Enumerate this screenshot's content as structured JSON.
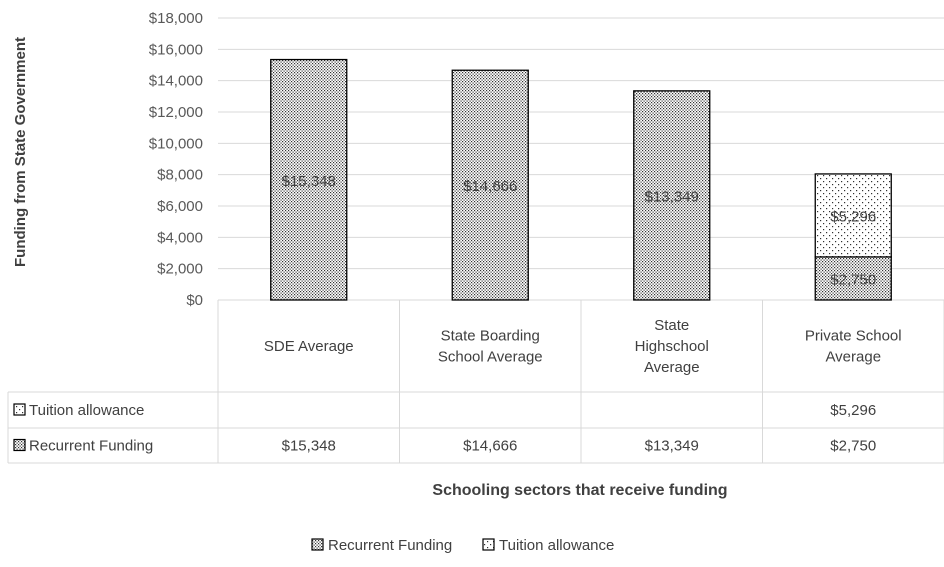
{
  "chart_data": {
    "type": "bar",
    "stacked": true,
    "categories": [
      [
        "SDE Average"
      ],
      [
        "State Boarding",
        "School Average"
      ],
      [
        "State",
        "Highschool",
        "Average"
      ],
      [
        "Private School",
        "Average"
      ]
    ],
    "series": [
      {
        "name": "Recurrent Funding",
        "values": [
          15348,
          14666,
          13349,
          2750
        ],
        "labels": [
          "$15,348",
          "$14,666",
          "$13,349",
          "$2,750"
        ],
        "pattern": "dense-dots",
        "color": "#000000"
      },
      {
        "name": "Tuition allowance",
        "values": [
          null,
          null,
          null,
          5296
        ],
        "labels": [
          "",
          "",
          "",
          "$5,296"
        ],
        "pattern": "sparse-dots",
        "color": "#000000"
      }
    ],
    "ylabel": "Funding from State Government",
    "xlabel": "Schooling sectors that receive funding",
    "ylim": [
      0,
      18000
    ],
    "yticks": [
      0,
      2000,
      4000,
      6000,
      8000,
      10000,
      12000,
      14000,
      16000,
      18000
    ],
    "ytick_labels": [
      "$0",
      "$2,000",
      "$4,000",
      "$6,000",
      "$8,000",
      "$10,000",
      "$12,000",
      "$14,000",
      "$16,000",
      "$18,000"
    ],
    "grid": true,
    "legend_position": "bottom",
    "data_table": {
      "rows": [
        {
          "series": "Tuition allowance",
          "cells": [
            "",
            "",
            "",
            "$5,296"
          ]
        },
        {
          "series": "Recurrent Funding",
          "cells": [
            "$15,348",
            "$14,666",
            "$13,349",
            "$2,750"
          ]
        }
      ]
    }
  }
}
